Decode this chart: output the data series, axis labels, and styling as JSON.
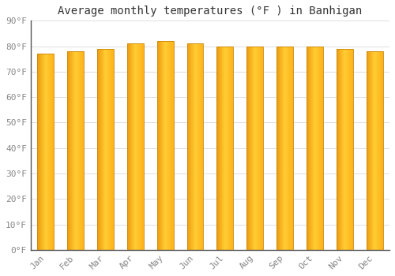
{
  "months": [
    "Jan",
    "Feb",
    "Mar",
    "Apr",
    "May",
    "Jun",
    "Jul",
    "Aug",
    "Sep",
    "Oct",
    "Nov",
    "Dec"
  ],
  "values": [
    77,
    78,
    79,
    81,
    82,
    81,
    80,
    80,
    80,
    80,
    79,
    78
  ],
  "title": "Average monthly temperatures (°F ) in Banhigan",
  "ylim": [
    0,
    90
  ],
  "yticks": [
    0,
    10,
    20,
    30,
    40,
    50,
    60,
    70,
    80,
    90
  ],
  "ytick_labels": [
    "0°F",
    "10°F",
    "20°F",
    "30°F",
    "40°F",
    "50°F",
    "60°F",
    "70°F",
    "80°F",
    "90°F"
  ],
  "bar_color_left": "#F5A623",
  "bar_color_right": "#FFD060",
  "bar_edge_color": "#C8860A",
  "background_color": "#FFFFFF",
  "grid_color": "#DDDDDD",
  "title_fontsize": 10,
  "tick_fontsize": 8,
  "font_family": "monospace",
  "bar_width": 0.55
}
